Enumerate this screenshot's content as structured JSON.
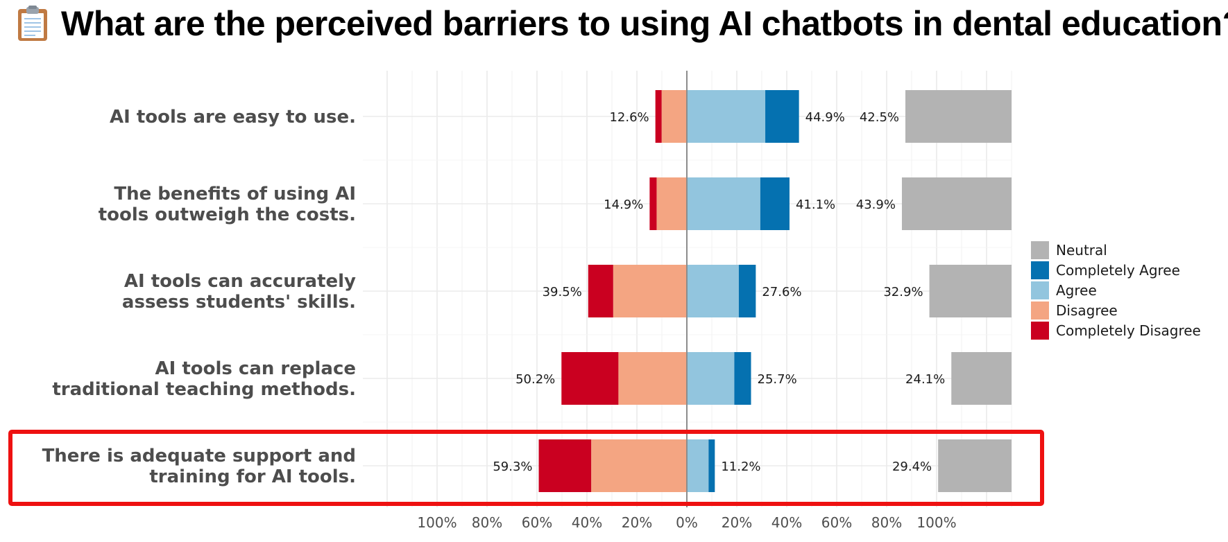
{
  "chart_data": {
    "type": "bar",
    "title": "What are the perceived barriers to using AI chatbots in dental education?",
    "title_icon": "clipboard-icon",
    "categories": [
      "AI tools are easy to use.",
      "The benefits of using AI tools outweigh the costs.",
      "AI tools can accurately assess students' skills.",
      "AI tools can replace traditional teaching methods.",
      "There is adequate support and training for AI tools."
    ],
    "category_lines": [
      [
        "AI tools are easy to use."
      ],
      [
        "The benefits of using AI",
        "tools outweigh the costs."
      ],
      [
        "AI tools can accurately",
        "assess students' skills."
      ],
      [
        "AI tools can replace",
        "traditional teaching methods."
      ],
      [
        "There is adequate support and",
        "training for AI tools."
      ]
    ],
    "series": [
      {
        "name": "Completely Disagree",
        "color": "#ca0020",
        "values": [
          2.5,
          2.8,
          10.0,
          22.8,
          21.0
        ]
      },
      {
        "name": "Disagree",
        "color": "#f4a582",
        "values": [
          10.1,
          12.1,
          29.5,
          27.4,
          38.3
        ]
      },
      {
        "name": "Agree",
        "color": "#92c5de",
        "values": [
          31.4,
          29.4,
          20.8,
          19.0,
          8.7
        ]
      },
      {
        "name": "Completely Agree",
        "color": "#0571b0",
        "values": [
          13.5,
          11.7,
          6.8,
          6.7,
          2.5
        ]
      },
      {
        "name": "Neutral",
        "color": "#b3b3b3",
        "values": [
          42.5,
          43.9,
          32.9,
          24.1,
          29.4
        ]
      }
    ],
    "disagree_labels": [
      "12.6%",
      "14.9%",
      "39.5%",
      "50.2%",
      "59.3%"
    ],
    "agree_labels": [
      "44.9%",
      "41.1%",
      "27.6%",
      "25.7%",
      "11.2%"
    ],
    "neutral_labels": [
      "42.5%",
      "43.9%",
      "32.9%",
      "24.1%",
      "29.4%"
    ],
    "x_ticks": [
      {
        "value": -100,
        "label": "100%"
      },
      {
        "value": -80,
        "label": "80%"
      },
      {
        "value": -60,
        "label": "60%"
      },
      {
        "value": -40,
        "label": "40%"
      },
      {
        "value": -20,
        "label": "20%"
      },
      {
        "value": 0,
        "label": "0%"
      },
      {
        "value": 20,
        "label": "20%"
      },
      {
        "value": 40,
        "label": "40%"
      },
      {
        "value": 60,
        "label": "60%"
      },
      {
        "value": 80,
        "label": "80%"
      },
      {
        "value": 100,
        "label": "100%"
      }
    ],
    "xlim": [
      -130,
      130
    ],
    "xlabel": "",
    "ylabel": "",
    "grid": true,
    "legend": {
      "placement": "right",
      "order": [
        "Neutral",
        "Completely Agree",
        "Agree",
        "Disagree",
        "Completely Disagree"
      ]
    },
    "highlight": {
      "category_index": 4,
      "color": "#ee1111"
    }
  }
}
